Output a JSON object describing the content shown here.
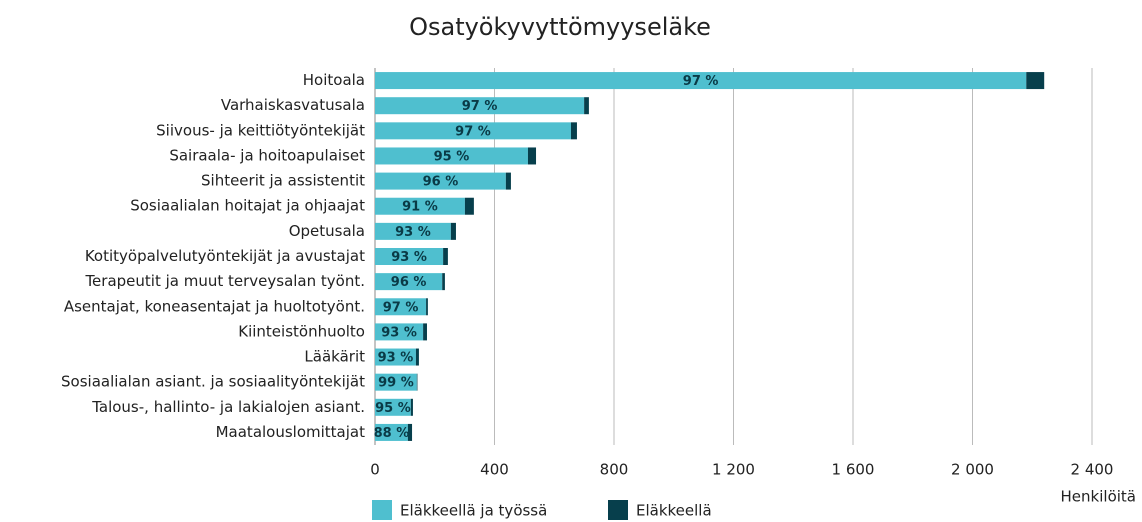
{
  "chart_data": {
    "type": "stacked-barh",
    "title": "Osatyökyvyttömyyseläke",
    "categories": [
      "Hoitoala",
      "Varhaiskasvatusala",
      "Siivous- ja keittiötyöntekijät",
      "Sairaala- ja hoitoapulaiset",
      "Sihteerit ja assistentit",
      "Sosiaalialan hoitajat ja ohjaajat",
      "Opetusala",
      "Kotityöpalvelutyöntekijät ja avustajat",
      "Terapeutit ja muut terveysalan työnt.",
      "Asentajat, koneasentajat ja huoltotyönt.",
      "Kiinteistönhuolto",
      "Lääkärit",
      "Sosiaalialan asiant. ja sosiaalityöntekijät",
      "Talous-, hallinto- ja lakialojen asiant.",
      "Maatalouslomittajat"
    ],
    "series": [
      {
        "name": "Eläkkeellä ja työssä",
        "color": "#4fbfcf",
        "values": [
          2180,
          700,
          656,
          512,
          438,
          301,
          254,
          228,
          225,
          171,
          161,
          137,
          140,
          120,
          110
        ],
        "share_labels": [
          "97 %",
          "97 %",
          "97 %",
          "95 %",
          "96 %",
          "91 %",
          "93 %",
          "93 %",
          "96 %",
          "97 %",
          "93 %",
          "93 %",
          "99 %",
          "95 %",
          "88 %"
        ]
      },
      {
        "name": "Eläkkeellä",
        "color": "#073f4c",
        "values": [
          60,
          16,
          20,
          27,
          17,
          30,
          17,
          16,
          9,
          6,
          13,
          10,
          2,
          7,
          14
        ]
      }
    ],
    "xlim": [
      0,
      2400
    ],
    "xticks": [
      0,
      400,
      800,
      {
        "value": 1200,
        "label": "1 200"
      },
      {
        "value": 1600,
        "label": "1 600"
      },
      {
        "value": 2000,
        "label": "2 000"
      },
      {
        "value": 2400,
        "label": "2 400"
      }
    ],
    "xlabel": "Henkilöitä",
    "grid": true,
    "legend": "bottom"
  }
}
